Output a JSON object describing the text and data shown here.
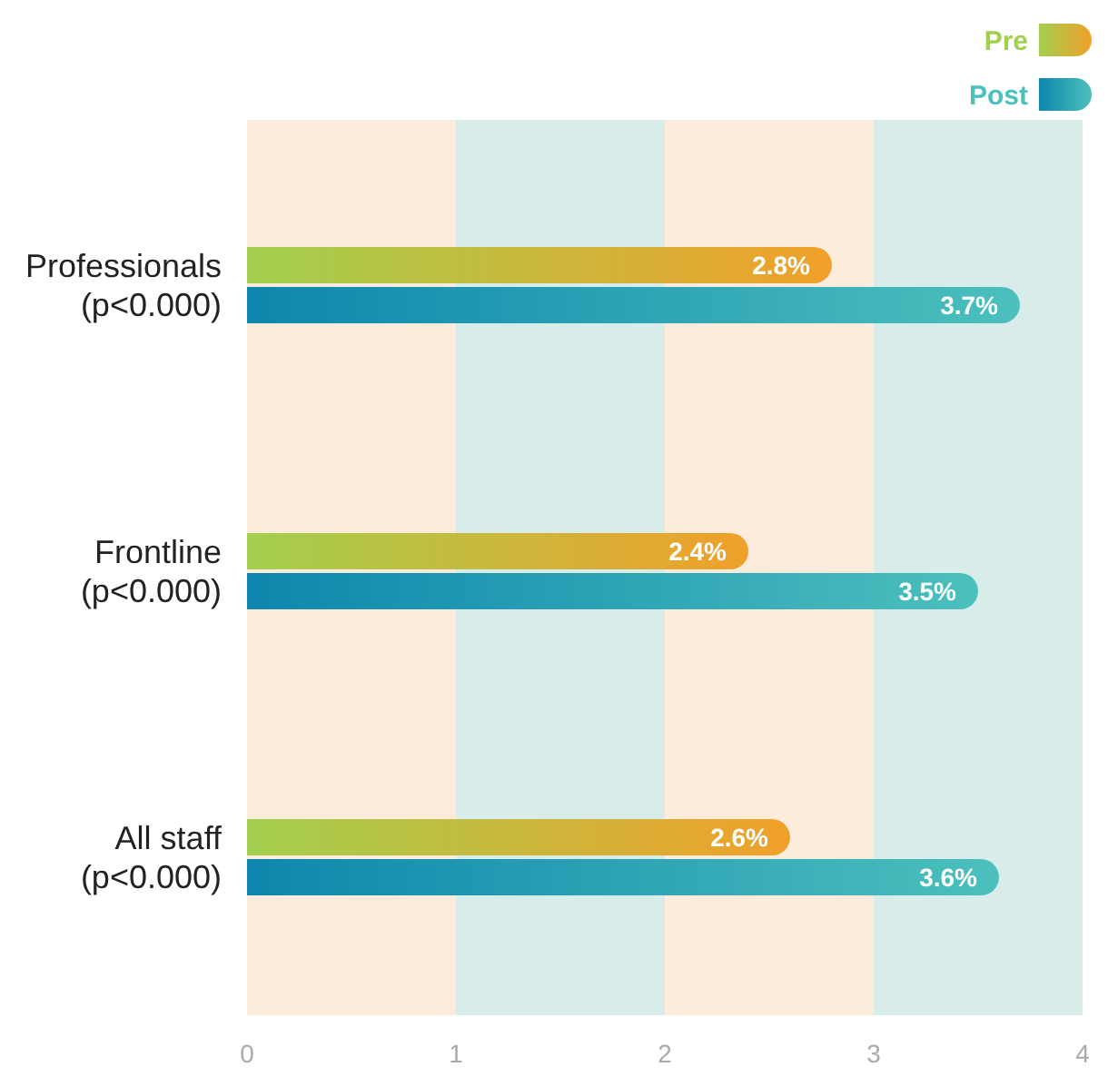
{
  "chart_data": {
    "type": "bar",
    "orientation": "horizontal",
    "categories": [
      "Professionals\n(p<0.000)",
      "Frontline\n(p<0.000)",
      "All staff\n(p<0.000)"
    ],
    "series": [
      {
        "name": "Pre",
        "color": "#f0a02a",
        "values": [
          2.8,
          2.4,
          2.6
        ],
        "value_labels": [
          "2.8%",
          "2.4%",
          "2.6%"
        ]
      },
      {
        "name": "Post",
        "color": "#0e86ad",
        "values": [
          3.7,
          3.5,
          3.6
        ],
        "value_labels": [
          "3.7%",
          "3.5%",
          "3.6%"
        ]
      }
    ],
    "xlim": [
      0,
      4
    ],
    "xticks": [
      0,
      1,
      2,
      3,
      4
    ],
    "grid": false,
    "legend": "top right",
    "bands": [
      {
        "axis": "x",
        "from": 0,
        "to": 1,
        "color": "#fdecdc"
      },
      {
        "axis": "x",
        "from": 1,
        "to": 2,
        "color": "#d8ecea"
      },
      {
        "axis": "x",
        "from": 2,
        "to": 3,
        "color": "#fdecdc"
      },
      {
        "axis": "x",
        "from": 3,
        "to": 4,
        "color": "#d8ecea"
      }
    ]
  }
}
